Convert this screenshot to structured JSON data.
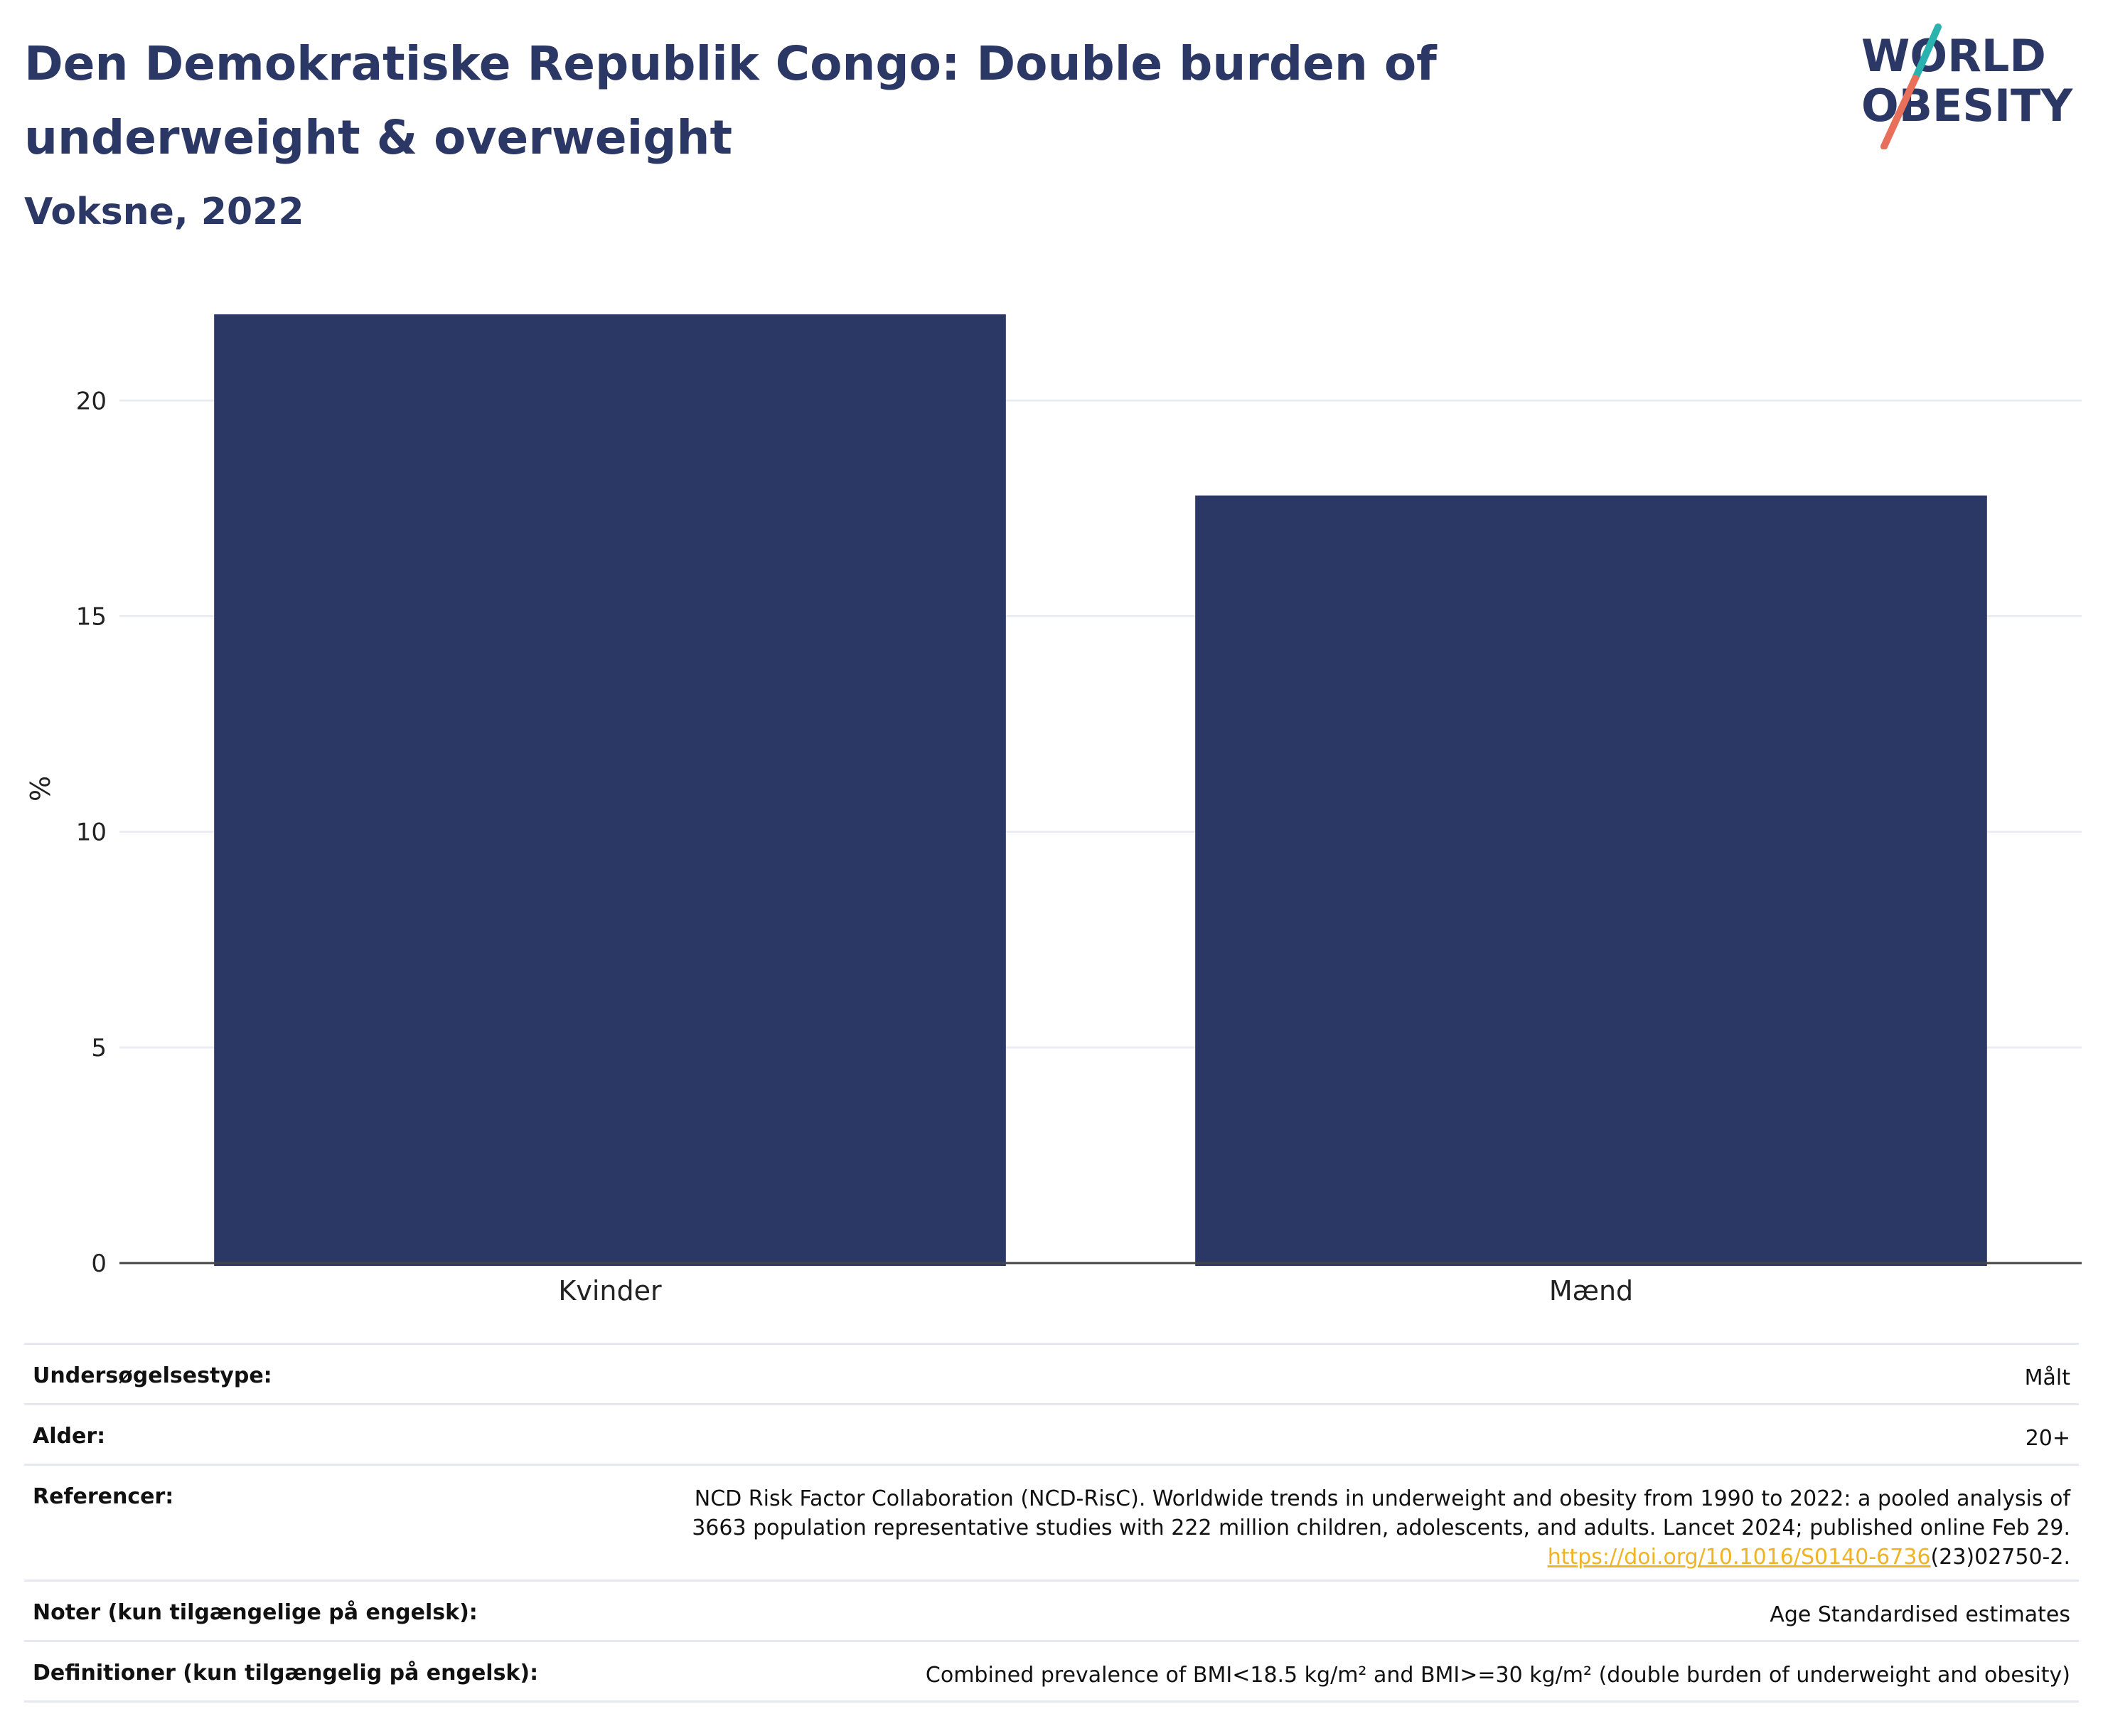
{
  "header": {
    "title": "Den Demokratiske Republik Congo: Double burden of underweight & overweight",
    "subtitle": "Voksne, 2022"
  },
  "logo": {
    "line1": "WORLD",
    "line2": "OBESITY",
    "accent_colors": [
      "#2ab3ae",
      "#e8705a"
    ],
    "text_color": "#2b3764"
  },
  "chart_data": {
    "type": "bar",
    "categories": [
      "Kvinder",
      "Mænd"
    ],
    "values": [
      22.0,
      17.8
    ],
    "title": "",
    "xlabel": "",
    "ylabel": "%",
    "ylim": [
      0,
      22
    ],
    "yticks": [
      0,
      5,
      10,
      15,
      20
    ],
    "grid": true,
    "bar_color": "#2b3764"
  },
  "meta": {
    "rows": [
      {
        "key": "Undersøgelsestype:",
        "value": "Målt"
      },
      {
        "key": "Alder:",
        "value": "20+"
      },
      {
        "key": "Referencer:",
        "value_line1": "NCD Risk Factor Collaboration (NCD-RisC). Worldwide trends in underweight and obesity from 1990 to 2022: a pooled analysis of",
        "value_line2": "3663 population representative studies with 222 million children, adolescents, and adults. Lancet 2024; published online Feb 29.",
        "link_text": "https://doi.org/10.1016/S0140-6736",
        "link_suffix": "(23)02750-2."
      },
      {
        "key": "Noter (kun tilgængelige på engelsk):",
        "value": "Age Standardised estimates"
      },
      {
        "key": "Definitioner (kun tilgængelig på engelsk):",
        "value": "Combined prevalence of BMI<18.5 kg/m² and BMI>=30 kg/m² (double burden of underweight and obesity)"
      }
    ]
  }
}
